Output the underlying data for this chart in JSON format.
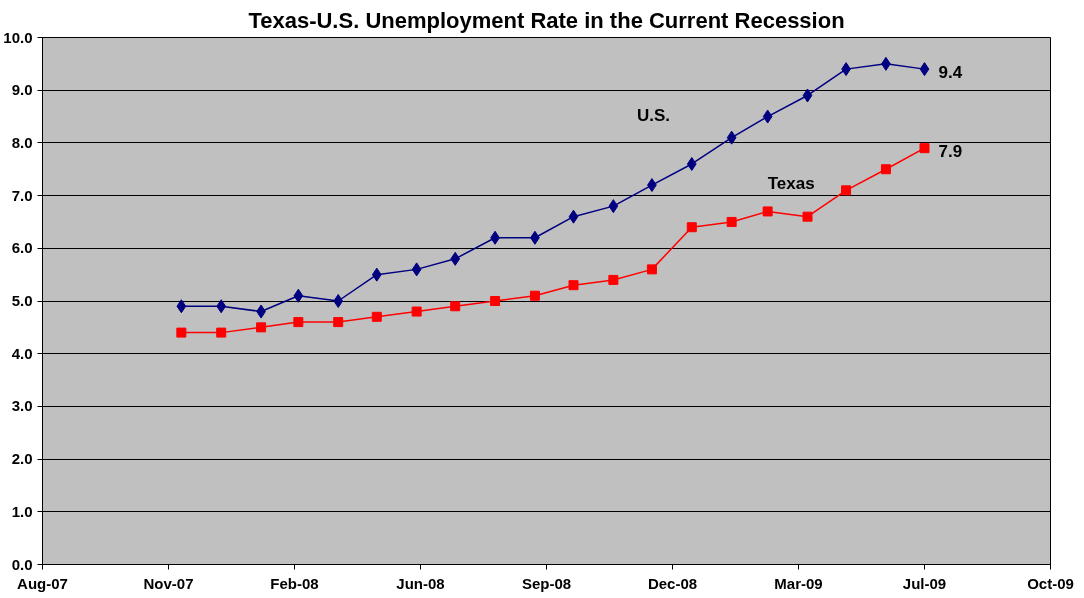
{
  "chart_data": {
    "type": "line",
    "title": "Texas-U.S. Unemployment Rate in the Current Recession",
    "x": [
      "2007-12",
      "2008-01",
      "2008-02",
      "2008-03",
      "2008-04",
      "2008-05",
      "2008-06",
      "2008-07",
      "2008-08",
      "2008-09",
      "2008-10",
      "2008-11",
      "2008-12",
      "2009-01",
      "2009-02",
      "2009-03",
      "2009-04",
      "2009-05",
      "2009-06",
      "2009-07"
    ],
    "series": [
      {
        "name": "U.S.",
        "color": "#000080",
        "marker": "diamond",
        "values": [
          4.9,
          4.9,
          4.8,
          5.1,
          5.0,
          5.5,
          5.6,
          5.8,
          6.2,
          6.2,
          6.6,
          6.8,
          7.2,
          7.6,
          8.1,
          8.5,
          8.9,
          9.4,
          9.5,
          9.4
        ]
      },
      {
        "name": "Texas",
        "color": "#ff0000",
        "marker": "square",
        "values": [
          4.4,
          4.4,
          4.5,
          4.6,
          4.6,
          4.7,
          4.8,
          4.9,
          5.0,
          5.1,
          5.3,
          5.4,
          5.6,
          6.4,
          6.5,
          6.7,
          6.6,
          7.1,
          7.5,
          7.9
        ]
      }
    ],
    "annotations": [
      {
        "text": "9.4",
        "x": "2009-07",
        "y": 9.4
      },
      {
        "text": "7.9",
        "x": "2009-07",
        "y": 7.9
      }
    ],
    "xlim": [
      "2007-08-15",
      "2009-10-07"
    ],
    "xticks": [
      {
        "value": "2007-08-15",
        "label": "Aug-07"
      },
      {
        "value": "2007-11-21",
        "label": "Nov-07"
      },
      {
        "value": "2008-02-27",
        "label": "Feb-08"
      },
      {
        "value": "2008-06-04",
        "label": "Jun-08"
      },
      {
        "value": "2008-09-10",
        "label": "Sep-08"
      },
      {
        "value": "2008-12-17",
        "label": "Dec-08"
      },
      {
        "value": "2009-03-25",
        "label": "Mar-09"
      },
      {
        "value": "2009-07-01",
        "label": "Jul-09"
      },
      {
        "value": "2009-10-07",
        "label": "Oct-09"
      }
    ],
    "ylim": [
      0,
      10
    ],
    "yticks": [
      {
        "value": 0,
        "label": "0.0"
      },
      {
        "value": 1,
        "label": "1.0"
      },
      {
        "value": 2,
        "label": "2.0"
      },
      {
        "value": 3,
        "label": "3.0"
      },
      {
        "value": 4,
        "label": "4.0"
      },
      {
        "value": 5,
        "label": "5.0"
      },
      {
        "value": 6,
        "label": "6.0"
      },
      {
        "value": 7,
        "label": "7.0"
      },
      {
        "value": 8,
        "label": "8.0"
      },
      {
        "value": 9,
        "label": "9.0"
      },
      {
        "value": 10,
        "label": "10.0"
      }
    ],
    "grid": "y"
  }
}
